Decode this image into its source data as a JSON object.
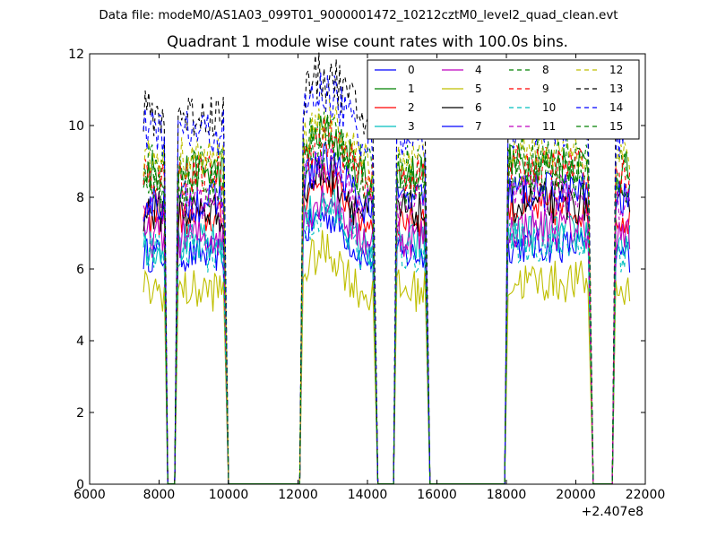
{
  "header": {
    "file_label": "Data file: modeM0/AS1A03_099T01_9000001472_10212cztM0_level2_quad_clean.evt"
  },
  "chart_data": {
    "type": "line",
    "title": "Quadrant 1 module wise count rates with 100.0s bins.",
    "xlabel": "",
    "ylabel": "",
    "offset_text": "+2.407e8",
    "xlim": [
      6000,
      22000
    ],
    "ylim": [
      0,
      12
    ],
    "x_ticks": [
      6000,
      8000,
      10000,
      12000,
      14000,
      16000,
      18000,
      20000,
      22000
    ],
    "y_ticks": [
      0,
      2,
      4,
      6,
      8,
      10,
      12
    ],
    "grid": false,
    "legend_position": "top-right",
    "legend_columns": 4,
    "segments": [
      {
        "start": 7550,
        "end": 8150,
        "drop_to": 8250
      },
      {
        "start": 8550,
        "end": 9850,
        "rise_from": 8450,
        "drop_to": 10000
      },
      {
        "start": 12150,
        "end": 14150,
        "rise_from": 12050,
        "drop_to": 14300
      },
      {
        "start": 14850,
        "end": 15650,
        "rise_from": 14750,
        "drop_to": 15800
      },
      {
        "start": 18050,
        "end": 20350,
        "rise_from": 17950,
        "drop_to": 20500
      },
      {
        "start": 21150,
        "end": 21550,
        "rise_from": 21050
      }
    ],
    "zero_spans": [
      [
        8250,
        8450
      ],
      [
        10000,
        12050
      ],
      [
        14300,
        14750
      ],
      [
        15800,
        17950
      ],
      [
        20500,
        21050
      ]
    ],
    "series": [
      {
        "name": "0",
        "color": "#0000ff",
        "style": "solid",
        "level": 6.4,
        "amp": 0.25
      },
      {
        "name": "1",
        "color": "#008000",
        "style": "solid",
        "level": 8.7,
        "amp": 0.3
      },
      {
        "name": "2",
        "color": "#ff0000",
        "style": "solid",
        "level": 7.4,
        "amp": 0.25
      },
      {
        "name": "3",
        "color": "#00bfbf",
        "style": "solid",
        "level": 6.7,
        "amp": 0.3
      },
      {
        "name": "4",
        "color": "#bf00bf",
        "style": "solid",
        "level": 6.9,
        "amp": 0.3
      },
      {
        "name": "5",
        "color": "#bfbf00",
        "style": "solid",
        "level": 5.4,
        "amp": 0.3
      },
      {
        "name": "6",
        "color": "#000000",
        "style": "solid",
        "level": 7.6,
        "amp": 0.3
      },
      {
        "name": "7",
        "color": "#0000ff",
        "style": "solid",
        "level": 7.9,
        "amp": 0.3
      },
      {
        "name": "8",
        "color": "#008000",
        "style": "dashed",
        "level": 8.9,
        "amp": 0.3
      },
      {
        "name": "9",
        "color": "#ff0000",
        "style": "dashed",
        "level": 8.6,
        "amp": 0.3
      },
      {
        "name": "10",
        "color": "#00bfbf",
        "style": "dashed",
        "level": 6.5,
        "amp": 0.3
      },
      {
        "name": "11",
        "color": "#bf00bf",
        "style": "dashed",
        "level": 7.8,
        "amp": 0.3
      },
      {
        "name": "12",
        "color": "#bfbf00",
        "style": "dashed",
        "level": 9.1,
        "amp": 0.3
      },
      {
        "name": "13",
        "color": "#000000",
        "style": "dashed",
        "level": 10.3,
        "amp": 0.35
      },
      {
        "name": "14",
        "color": "#0000ff",
        "style": "dashed",
        "level": 9.8,
        "amp": 0.35
      },
      {
        "name": "15",
        "color": "#008000",
        "style": "dashed",
        "level": 8.3,
        "amp": 0.3
      }
    ]
  }
}
